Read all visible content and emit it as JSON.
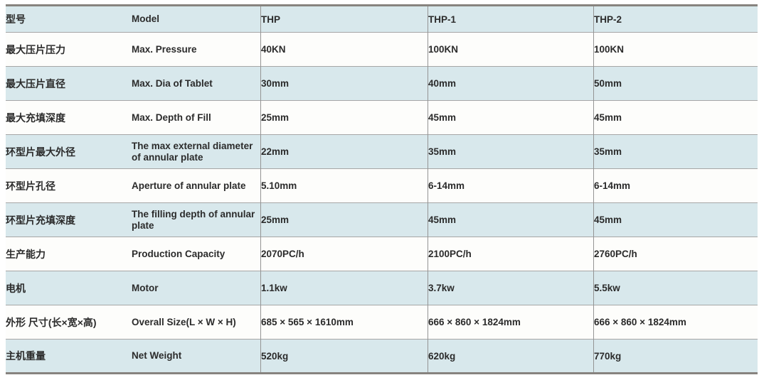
{
  "colors": {
    "row_blue": "#d8e8ec",
    "row_white": "#fdfdfb",
    "grid": "#a6a6a6",
    "gridv": "#949494",
    "frame": "#87837f",
    "text": "#2b2b2b"
  },
  "table": {
    "header": {
      "zh": "型号",
      "en": "Model",
      "thp": "THP",
      "thp1": "THP-1",
      "thp2": "THP-2"
    },
    "rows": [
      {
        "zh": "最大压片压力",
        "en": "Max. Pressure",
        "thp": "40KN",
        "thp1": "100KN",
        "thp2": "100KN"
      },
      {
        "zh": "最大压片直径",
        "en": "Max. Dia of Tablet",
        "thp": "30mm",
        "thp1": "40mm",
        "thp2": "50mm"
      },
      {
        "zh": "最大充填深度",
        "en": "Max. Depth of Fill",
        "thp": "25mm",
        "thp1": "45mm",
        "thp2": "45mm"
      },
      {
        "zh": "环型片最大外径",
        "en": "The max external diameter of annular plate",
        "thp": "22mm",
        "thp1": "35mm",
        "thp2": "35mm"
      },
      {
        "zh": "环型片孔径",
        "en": "Aperture of annular plate",
        "thp": "5.10mm",
        "thp1": "6-14mm",
        "thp2": "6-14mm"
      },
      {
        "zh": "环型片充填深度",
        "en": "The filling depth of annular plate",
        "thp": "25mm",
        "thp1": "45mm",
        "thp2": "45mm"
      },
      {
        "zh": "生产能力",
        "en": "Production Capacity",
        "thp": "2070PC/h",
        "thp1": "2100PC/h",
        "thp2": "2760PC/h"
      },
      {
        "zh": "电机",
        "en": "Motor",
        "thp": "1.1kw",
        "thp1": "3.7kw",
        "thp2": "5.5kw"
      },
      {
        "zh": "外形 尺寸(长×宽×高)",
        "en": "Overall Size(L × W × H)",
        "thp": "685 × 565 × 1610mm",
        "thp1": "666 × 860 × 1824mm",
        "thp2": "666 × 860 × 1824mm"
      },
      {
        "zh": "主机重量",
        "en": "Net Weight",
        "thp": "520kg",
        "thp1": "620kg",
        "thp2": "770kg"
      }
    ]
  }
}
